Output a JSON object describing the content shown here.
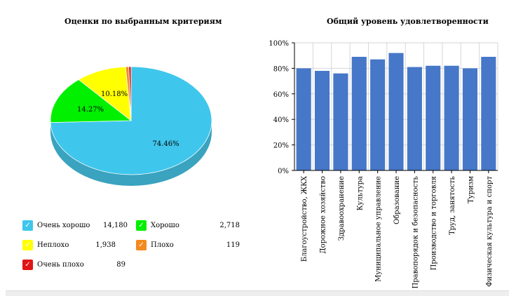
{
  "pie_title": "Оценки по выбранным критериям",
  "bar_title": "Общий уровень удовлетворенности",
  "chart_data": [
    {
      "type": "pie",
      "title": "Оценки по выбранным критериям",
      "categories": [
        "Очень хорошо",
        "Хорошо",
        "Неплохо",
        "Плохо",
        "Очень плохо"
      ],
      "values": [
        14180,
        2718,
        1938,
        119,
        89
      ],
      "labels": [
        "74.46%",
        "14.27%",
        "10.18%",
        "",
        ""
      ],
      "value_labels": [
        "14,180",
        "2,718",
        "1,938",
        "119",
        "89"
      ],
      "colors": [
        "#3fc6ec",
        "#00f000",
        "#ffff00",
        "#f48a1e",
        "#e01515"
      ],
      "side_color": "#3aa3bf",
      "legend": "bottom"
    },
    {
      "type": "bar",
      "title": "Общий уровень удовлетворенности",
      "categories": [
        "Благоустройство, ЖКХ",
        "Дорожное хозяйство",
        "Здравоохранение",
        "Культура",
        "Муниципальное управление",
        "Образование",
        "Правопорядок и безопасность",
        "Производство и торговля",
        "Труд, занятость",
        "Туризм",
        "Физическая культура и спорт"
      ],
      "values": [
        80,
        78,
        76,
        89,
        87,
        92,
        81,
        82,
        82,
        80,
        89
      ],
      "ylim": [
        0,
        100
      ],
      "yticks": [
        "0%",
        "20%",
        "40%",
        "60%",
        "80%",
        "100%"
      ],
      "grid": true,
      "color": "#4677c8"
    }
  ]
}
